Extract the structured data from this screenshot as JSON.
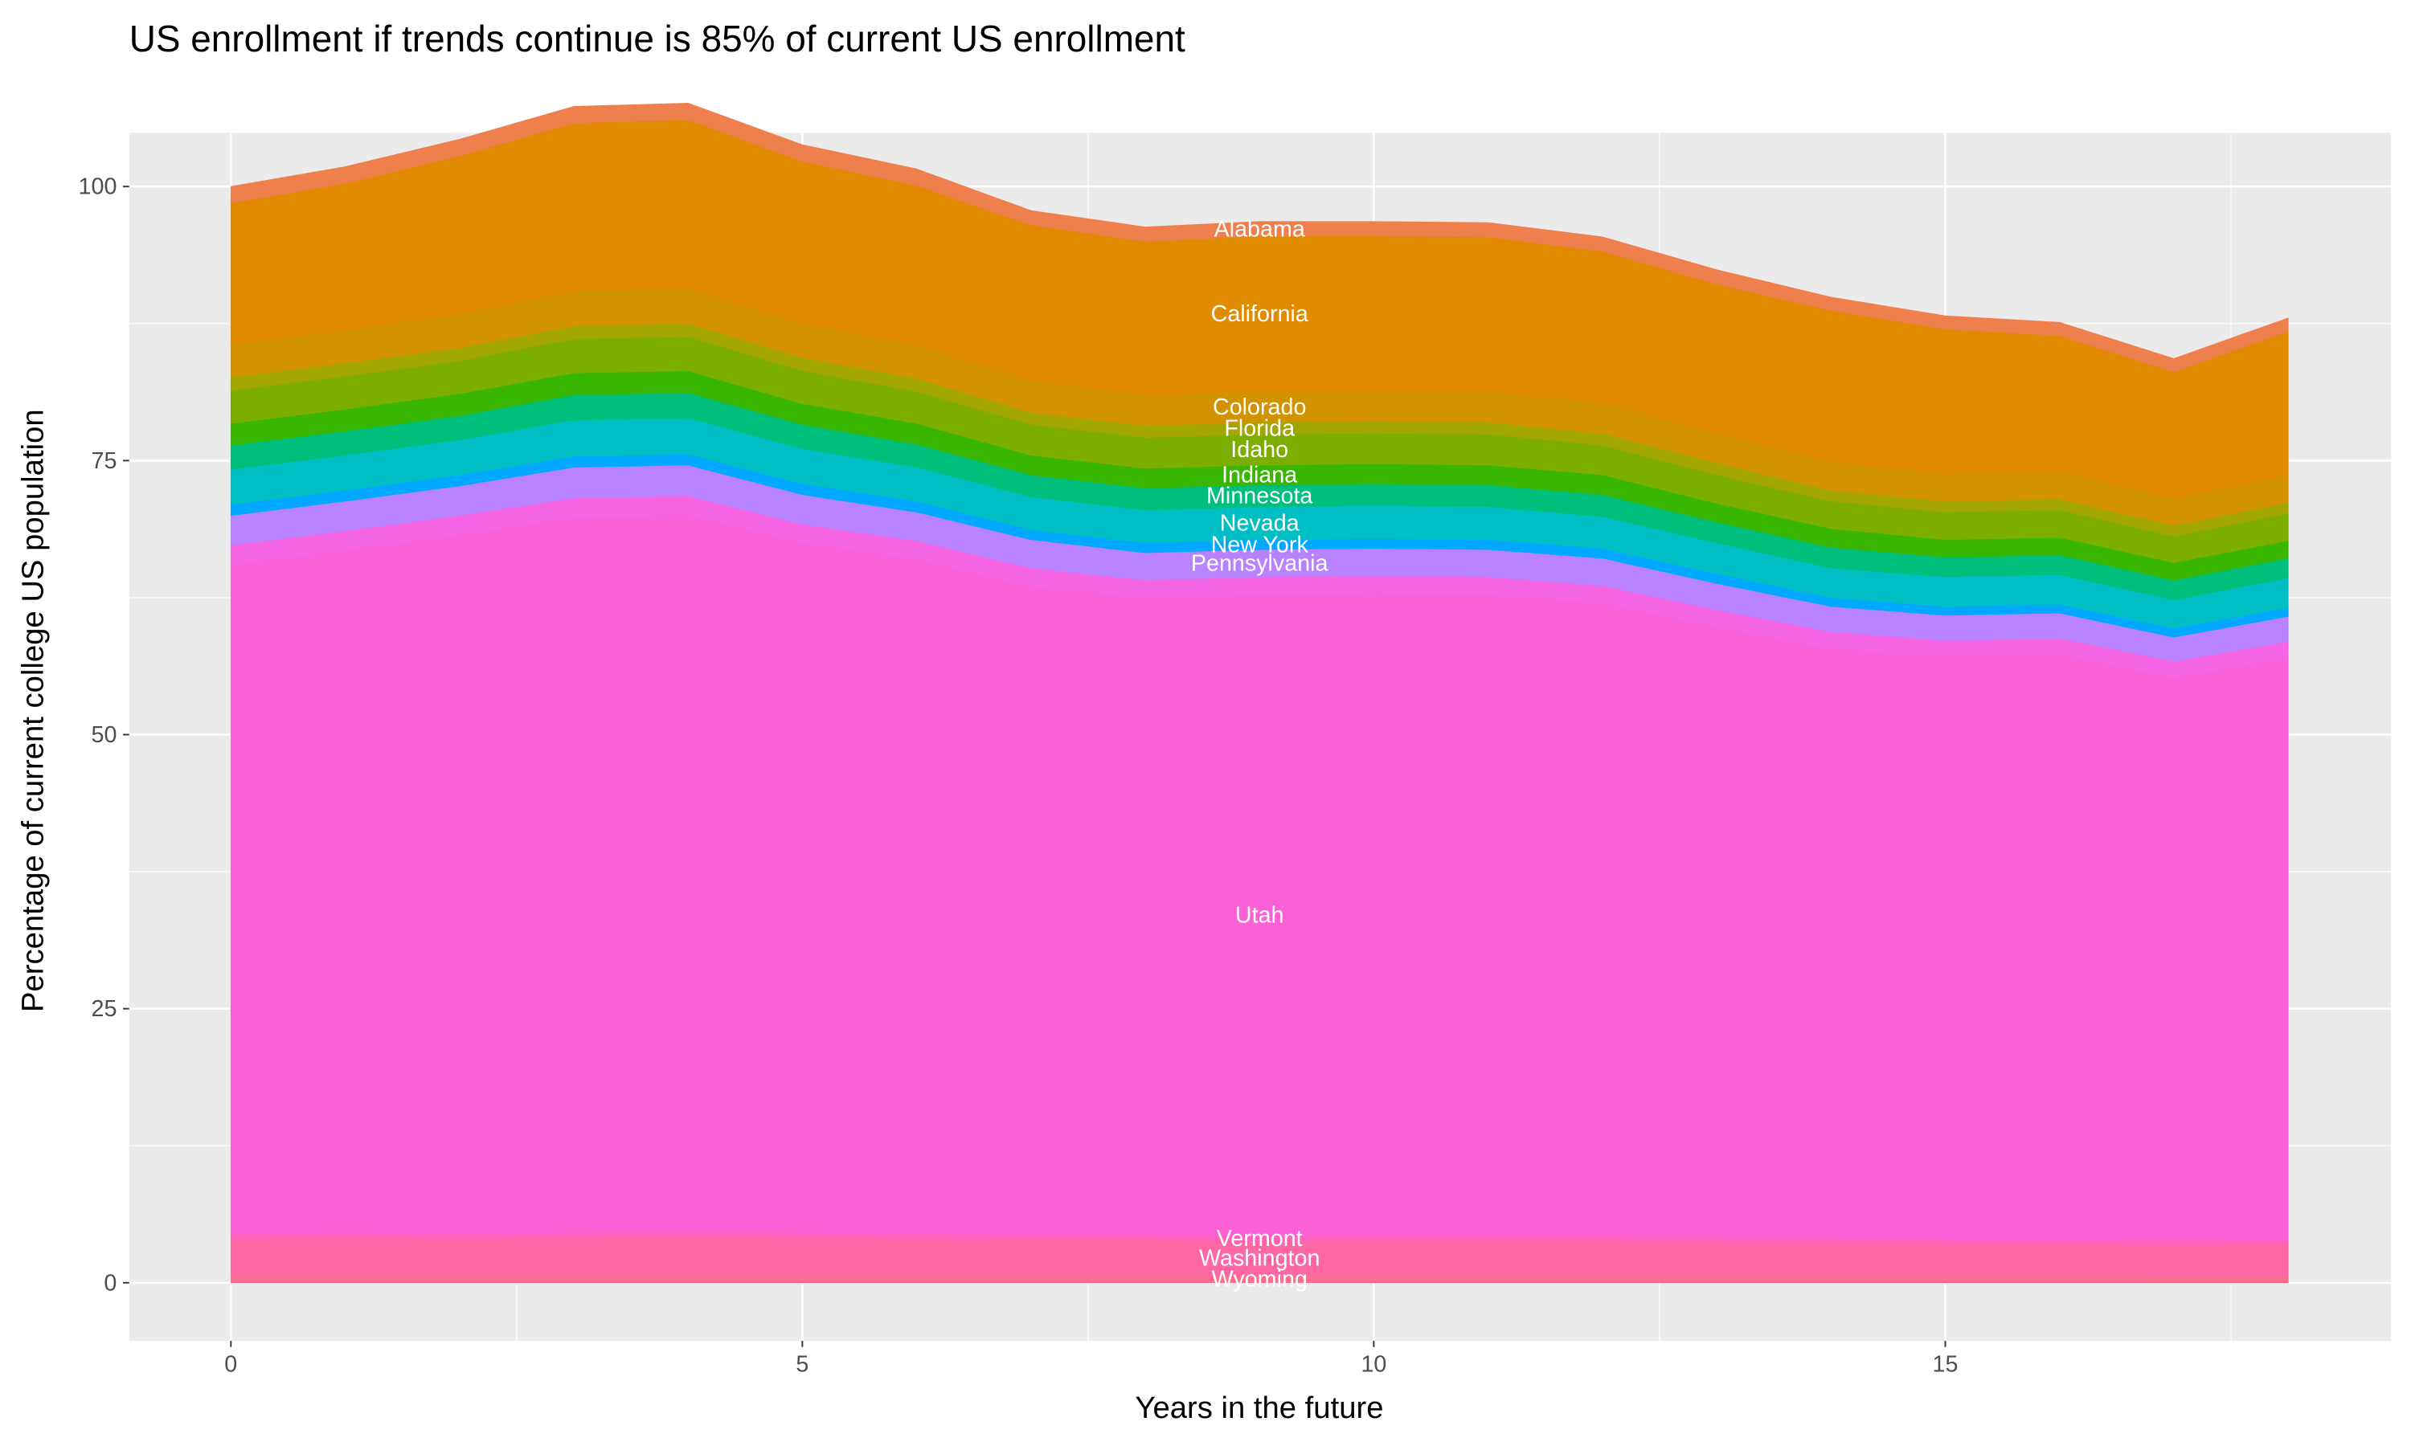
{
  "chart_data": {
    "type": "area",
    "stacked": true,
    "title": "US enrollment if trends continue is 85% of current US enrollment",
    "xlabel": "Years in the future",
    "ylabel": "Percentage of current college US population",
    "xlim": [
      -0.89,
      18.9
    ],
    "ylim": [
      -5.3,
      104.9
    ],
    "x_ticks": [
      0,
      5,
      10,
      15
    ],
    "y_ticks": [
      0,
      25,
      50,
      75,
      100
    ],
    "grid": true,
    "legend": "none",
    "x": [
      0,
      1,
      2,
      3,
      4,
      5,
      6,
      7,
      8,
      9,
      10,
      11,
      12,
      13,
      14,
      15,
      16,
      17,
      18
    ],
    "series": [
      {
        "name": "Wyoming",
        "color": "#FF6C91",
        "values": [
          0.7,
          0.7,
          0.7,
          0.7,
          0.7,
          0.7,
          0.7,
          0.7,
          0.7,
          0.7,
          0.7,
          0.7,
          0.7,
          0.7,
          0.7,
          0.7,
          0.7,
          0.6,
          0.6
        ]
      },
      {
        "name": "Washington",
        "color": "#FF67A4",
        "values": [
          3.3,
          3.4,
          3.3,
          3.4,
          3.5,
          3.4,
          3.3,
          3.2,
          3.2,
          3.1,
          3.1,
          3.1,
          3.1,
          3.0,
          2.9,
          2.8,
          2.8,
          2.8,
          2.9
        ]
      },
      {
        "name": "Vermont",
        "color": "#FF62BC",
        "values": [
          0.5,
          0.5,
          0.5,
          0.5,
          0.5,
          0.5,
          0.5,
          0.5,
          0.5,
          0.5,
          0.5,
          0.5,
          0.5,
          0.5,
          0.5,
          0.5,
          0.5,
          0.5,
          0.5
        ]
      },
      {
        "name": "Utah",
        "color": "#FB61D7",
        "values": [
          61.0,
          62.2,
          63.7,
          65.2,
          65.3,
          62.9,
          61.5,
          59.1,
          58.1,
          58.5,
          58.6,
          58.5,
          57.7,
          55.6,
          53.7,
          53.1,
          53.3,
          51.3,
          53.0
        ]
      },
      {
        "color": "#F564E3",
        "values": [
          1.8,
          1.8,
          1.8,
          1.8,
          1.8,
          1.7,
          1.7,
          1.7,
          1.6,
          1.6,
          1.6,
          1.6,
          1.6,
          1.6,
          1.6,
          1.5,
          1.5,
          1.5,
          1.5
        ]
      },
      {
        "name": "Pennsylvania",
        "color": "#B983FF",
        "values": [
          2.7,
          2.7,
          2.7,
          2.8,
          2.8,
          2.7,
          2.6,
          2.6,
          2.5,
          2.5,
          2.5,
          2.5,
          2.5,
          2.4,
          2.3,
          2.3,
          2.3,
          2.2,
          2.3
        ]
      },
      {
        "name": "New York",
        "color": "#00A9FF",
        "values": [
          1.0,
          1.0,
          1.0,
          1.0,
          1.0,
          1.0,
          1.0,
          0.9,
          0.9,
          0.9,
          0.9,
          0.9,
          0.9,
          0.9,
          0.8,
          0.8,
          0.8,
          0.8,
          0.8
        ]
      },
      {
        "name": "Nevada",
        "color": "#00BFC4",
        "values": [
          3.2,
          3.2,
          3.2,
          3.3,
          3.3,
          3.2,
          3.1,
          3.0,
          3.0,
          3.0,
          3.0,
          3.0,
          2.9,
          2.8,
          2.7,
          2.7,
          2.7,
          2.6,
          2.7
        ]
      },
      {
        "name": "Minnesota",
        "color": "#00BF7D",
        "values": [
          2.2,
          2.2,
          2.2,
          2.3,
          2.3,
          2.2,
          2.1,
          2.0,
          2.0,
          2.0,
          2.0,
          2.0,
          2.0,
          1.9,
          1.9,
          1.8,
          1.8,
          1.8,
          1.8
        ]
      },
      {
        "name": "Indiana",
        "color": "#39B600",
        "values": [
          2.0,
          2.0,
          2.0,
          2.0,
          2.0,
          1.9,
          1.9,
          1.8,
          1.8,
          1.8,
          1.8,
          1.8,
          1.8,
          1.7,
          1.7,
          1.6,
          1.6,
          1.6,
          1.6
        ]
      },
      {
        "name": "Idaho",
        "color": "#7CAE00",
        "values": [
          3.0,
          3.0,
          3.0,
          3.1,
          3.1,
          3.0,
          2.9,
          2.8,
          2.8,
          2.8,
          2.8,
          2.8,
          2.7,
          2.6,
          2.5,
          2.5,
          2.5,
          2.4,
          2.5
        ]
      },
      {
        "name": "Florida",
        "color": "#A3A500",
        "values": [
          1.2,
          1.2,
          1.2,
          1.2,
          1.2,
          1.2,
          1.2,
          1.1,
          1.1,
          1.1,
          1.1,
          1.1,
          1.1,
          1.1,
          1.0,
          1.0,
          1.0,
          1.0,
          1.0
        ]
      },
      {
        "name": "Colorado",
        "color": "#D39200",
        "values": [
          3.0,
          3.0,
          3.1,
          3.2,
          3.2,
          3.1,
          3.0,
          2.9,
          2.8,
          2.8,
          2.8,
          2.8,
          2.8,
          2.7,
          2.6,
          2.5,
          2.5,
          2.5,
          2.5
        ]
      },
      {
        "name": "California",
        "color": "#E08B00",
        "values": [
          12.9,
          13.4,
          14.4,
          15.3,
          15.4,
          14.8,
          14.6,
          14.2,
          14.0,
          14.2,
          14.1,
          14.1,
          13.8,
          13.6,
          13.8,
          13.2,
          12.4,
          11.5,
          13.1
        ]
      },
      {
        "name": "Alabama",
        "color": "#EF7F4D",
        "values": [
          1.5,
          1.5,
          1.5,
          1.5,
          1.5,
          1.5,
          1.5,
          1.3,
          1.3,
          1.3,
          1.3,
          1.3,
          1.3,
          1.3,
          1.2,
          1.2,
          1.2,
          1.2,
          1.2
        ]
      }
    ],
    "label_x": 9
  }
}
